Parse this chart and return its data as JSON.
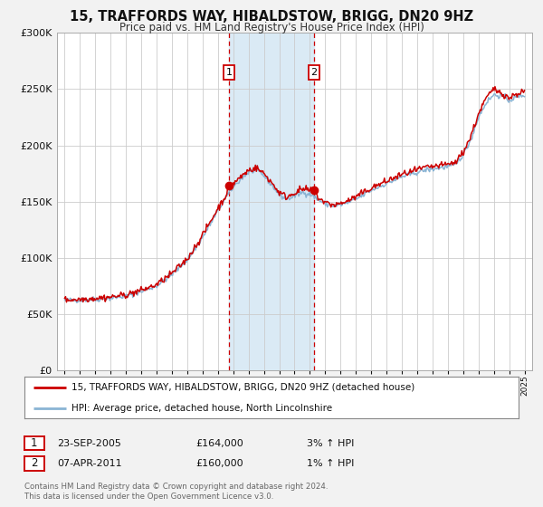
{
  "title": "15, TRAFFORDS WAY, HIBALDSTOW, BRIGG, DN20 9HZ",
  "subtitle": "Price paid vs. HM Land Registry's House Price Index (HPI)",
  "legend_line1": "15, TRAFFORDS WAY, HIBALDSTOW, BRIGG, DN20 9HZ (detached house)",
  "legend_line2": "HPI: Average price, detached house, North Lincolnshire",
  "hpi_color": "#8ab4d4",
  "price_color": "#cc0000",
  "background_color": "#f2f2f2",
  "plot_bg_color": "#ffffff",
  "shade_color": "#daeaf5",
  "transaction1_date": "23-SEP-2005",
  "transaction1_price": "£164,000",
  "transaction1_hpi": "3% ↑ HPI",
  "transaction2_date": "07-APR-2011",
  "transaction2_price": "£160,000",
  "transaction2_hpi": "1% ↑ HPI",
  "transaction1_x": 2005.73,
  "transaction2_x": 2011.27,
  "transaction1_y": 164000,
  "transaction2_y": 160000,
  "ylim": [
    0,
    300000
  ],
  "xlim": [
    1994.5,
    2025.5
  ],
  "yticks": [
    0,
    50000,
    100000,
    150000,
    200000,
    250000,
    300000
  ],
  "footer": "Contains HM Land Registry data © Crown copyright and database right 2024.\nThis data is licensed under the Open Government Licence v3.0."
}
